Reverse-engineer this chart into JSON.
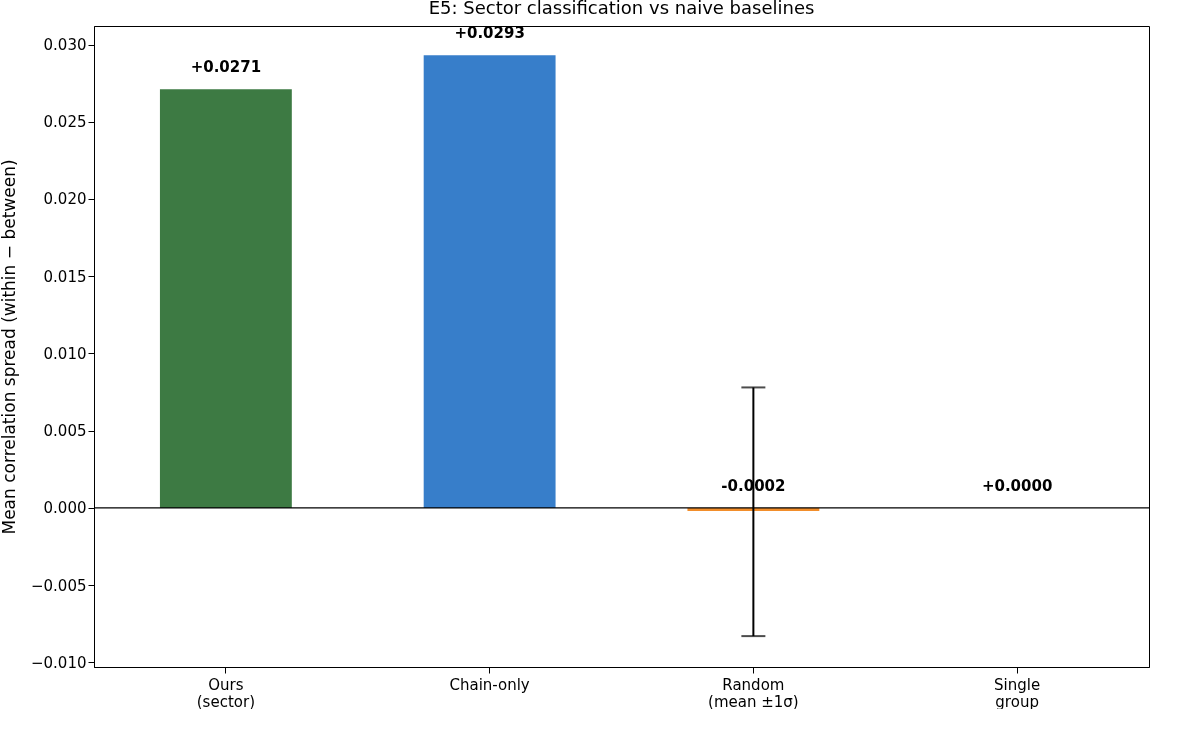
{
  "chart_data": {
    "type": "bar",
    "title": "E5: Sector classification vs naive baselines",
    "ylabel": "Mean correlation spread (within − between)",
    "categories": [
      "Ours\n(sector)",
      "Chain-only",
      "Random\n(mean ±1σ)",
      "Single\ngroup"
    ],
    "values": [
      0.0271,
      0.0293,
      -0.0002,
      0.0
    ],
    "colors": [
      "#3d7a43",
      "#377eca",
      "#f28e2b",
      "#999999"
    ],
    "errors": [
      null,
      null,
      [
        -0.0083,
        0.0078
      ],
      null
    ],
    "value_labels": [
      "+0.0271",
      "+0.0293",
      "-0.0002",
      "+0.0000"
    ],
    "ylim": [
      -0.0103,
      0.0312
    ],
    "yticks": [
      {
        "value": -0.01,
        "label": "−0.010"
      },
      {
        "value": -0.005,
        "label": "−0.005"
      },
      {
        "value": 0,
        "label": "0.000"
      },
      {
        "value": 0.005,
        "label": "0.005"
      },
      {
        "value": 0.01,
        "label": "0.010"
      },
      {
        "value": 0.015,
        "label": "0.015"
      },
      {
        "value": 0.02,
        "label": "0.020"
      },
      {
        "value": 0.025,
        "label": "0.025"
      },
      {
        "value": 0.03,
        "label": "0.030"
      }
    ],
    "ref_lines": [
      {
        "axis": "y",
        "value": 0,
        "label": null,
        "color": "#000000"
      }
    ],
    "grid": false,
    "legend": false
  }
}
